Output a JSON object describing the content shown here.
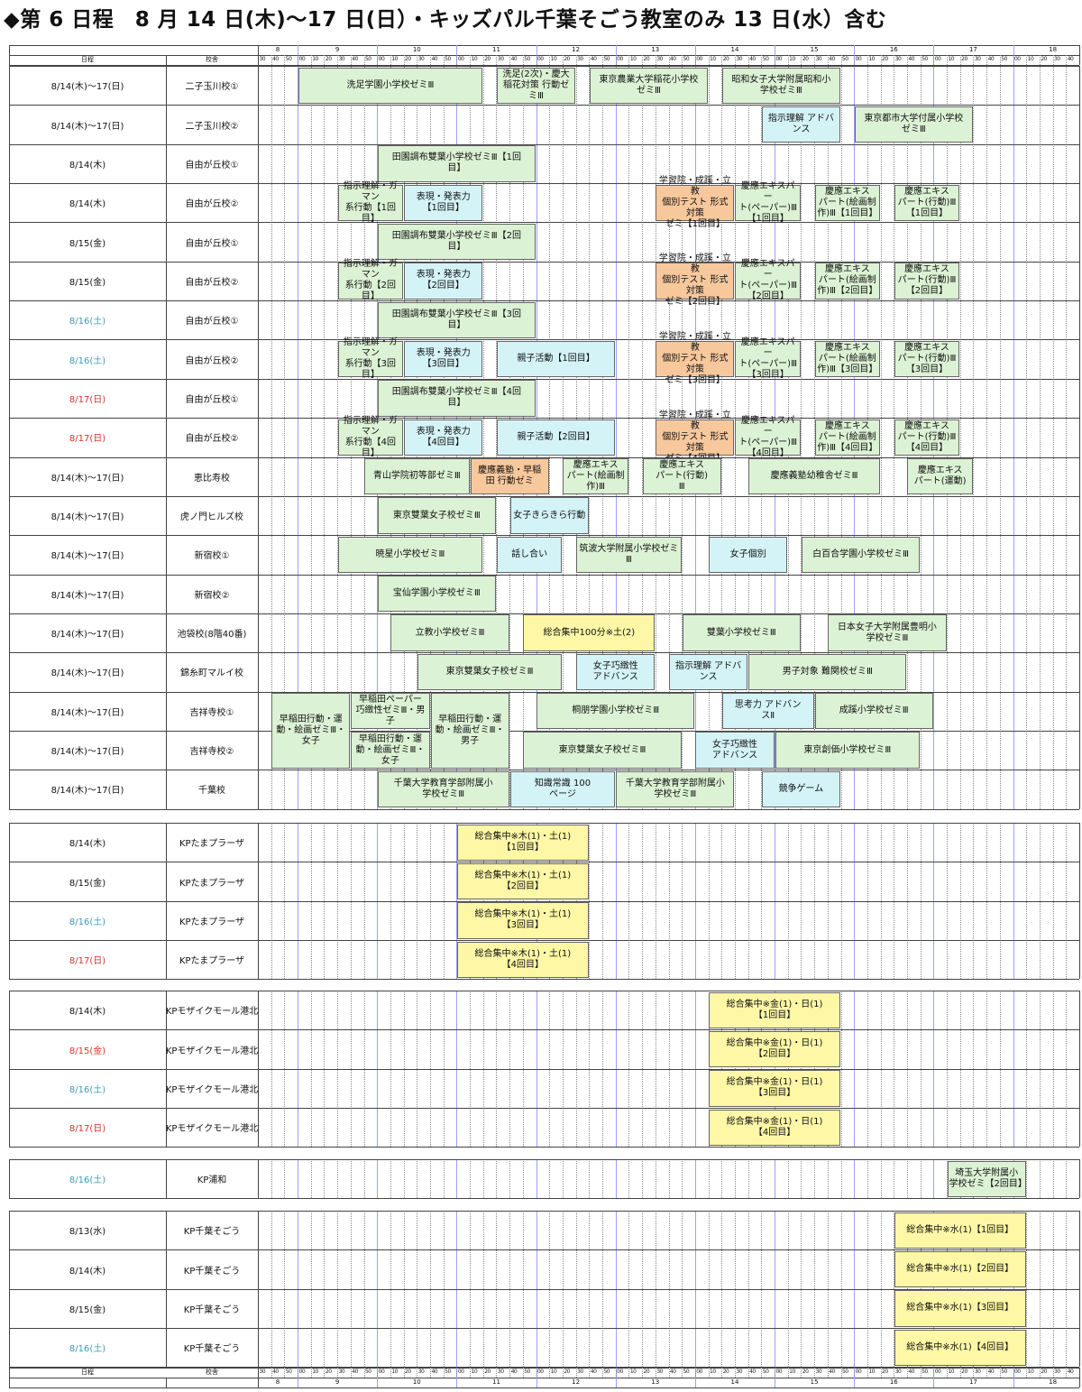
{
  "title": "◆第 6 日程　8 月 14 日(木)～17 日(日）・キッズパル千葉そごう教室のみ 13 日(水）含む",
  "header": {
    "date_label": "日程",
    "school_label": "校舎",
    "hours": [
      "8",
      "9",
      "10",
      "11",
      "12",
      "13",
      "14",
      "15",
      "16",
      "17",
      "18"
    ],
    "first_hour_ticks": [
      "30",
      "40",
      "50"
    ],
    "hour_ticks": [
      "00",
      "10",
      "20",
      "30",
      "40",
      "50"
    ]
  },
  "colors": {
    "green": "#dcf2d4",
    "cyan": "#d4f3f7",
    "orange": "#f8c89d",
    "yellow": "#fdf7a6",
    "blue_date": "#3a9bb6",
    "red_date": "#e0302a"
  },
  "groups": [
    {
      "rows": [
        {
          "date": "8/14(木)～17(日)",
          "date_color": "",
          "school": "二子玉川校①",
          "blocks": [
            {
              "start": "9:00",
              "end": "11:20",
              "label": "洗足学園小学校ゼミⅢ",
              "color": "green"
            },
            {
              "start": "11:30",
              "end": "12:30",
              "label": "洗足(2次)・慶大\n稲花対策 行動ゼ\nミⅢ",
              "color": "green"
            },
            {
              "start": "12:40",
              "end": "14:10",
              "label": "東京農業大学稲花小学校\nゼミⅢ",
              "color": "green"
            },
            {
              "start": "14:20",
              "end": "15:50",
              "label": "昭和女子大学附属昭和小\n学校ゼミⅢ",
              "color": "green"
            }
          ]
        },
        {
          "date": "8/14(木)～17(日)",
          "date_color": "",
          "school": "二子玉川校②",
          "blocks": [
            {
              "start": "14:50",
              "end": "15:50",
              "label": "指示理解 アドバ\nンス",
              "color": "cyan"
            },
            {
              "start": "16:00",
              "end": "17:30",
              "label": "東京都市大学付属小学校\nゼミⅢ",
              "color": "green"
            }
          ]
        },
        {
          "date": "8/14(木)",
          "date_color": "",
          "school": "自由が丘校①",
          "blocks": [
            {
              "start": "10:00",
              "end": "12:00",
              "label": "田園調布雙葉小学校ゼミⅢ【1回\n目】",
              "color": "green"
            }
          ]
        },
        {
          "date": "8/14(木)",
          "date_color": "",
          "school": "自由が丘校②",
          "blocks": [
            {
              "start": "9:30",
              "end": "10:20",
              "label": "指示理解・ガマン\n系行動【1回目】",
              "color": "green"
            },
            {
              "start": "10:20",
              "end": "11:20",
              "label": "表現・発表力\n【1回目】",
              "color": "cyan"
            },
            {
              "start": "13:30",
              "end": "14:30",
              "label": "学習院・成蹊・立教\n個別テスト 形式対策\nゼミ【1回目】",
              "color": "orange"
            },
            {
              "start": "14:30",
              "end": "15:20",
              "label": "慶應エキスパー\nト(ペーパー)Ⅲ\n【1回目】",
              "color": "green"
            },
            {
              "start": "15:30",
              "end": "16:20",
              "label": "慶應エキス\nパート(絵画制\n作)Ⅲ【1回目】",
              "color": "green"
            },
            {
              "start": "16:30",
              "end": "17:20",
              "label": "慶應エキス\nパート(行動)Ⅲ\n【1回目】",
              "color": "green"
            }
          ]
        },
        {
          "date": "8/15(金)",
          "date_color": "",
          "school": "自由が丘校①",
          "blocks": [
            {
              "start": "10:00",
              "end": "12:00",
              "label": "田園調布雙葉小学校ゼミⅢ【2回\n目】",
              "color": "green"
            }
          ]
        },
        {
          "date": "8/15(金)",
          "date_color": "",
          "school": "自由が丘校②",
          "blocks": [
            {
              "start": "9:30",
              "end": "10:20",
              "label": "指示理解・ガマン\n系行動【2回目】",
              "color": "green"
            },
            {
              "start": "10:20",
              "end": "11:20",
              "label": "表現・発表力\n【2回目】",
              "color": "cyan"
            },
            {
              "start": "13:30",
              "end": "14:30",
              "label": "学習院・成蹊・立教\n個別テスト 形式対策\nゼミ【2回目】",
              "color": "orange"
            },
            {
              "start": "14:30",
              "end": "15:20",
              "label": "慶應エキスパー\nト(ペーパー)Ⅲ\n【2回目】",
              "color": "green"
            },
            {
              "start": "15:30",
              "end": "16:20",
              "label": "慶應エキス\nパート(絵画制\n作)Ⅲ【2回目】",
              "color": "green"
            },
            {
              "start": "16:30",
              "end": "17:20",
              "label": "慶應エキス\nパート(行動)Ⅲ\n【2回目】",
              "color": "green"
            }
          ]
        },
        {
          "date": "8/16(土)",
          "date_color": "blue",
          "school": "自由が丘校①",
          "blocks": [
            {
              "start": "10:00",
              "end": "12:00",
              "label": "田園調布雙葉小学校ゼミⅢ【3回\n目】",
              "color": "green"
            }
          ]
        },
        {
          "date": "8/16(土)",
          "date_color": "blue",
          "school": "自由が丘校②",
          "blocks": [
            {
              "start": "9:30",
              "end": "10:20",
              "label": "指示理解・ガマン\n系行動【3回目】",
              "color": "green"
            },
            {
              "start": "10:20",
              "end": "11:20",
              "label": "表現・発表力\n【3回目】",
              "color": "cyan"
            },
            {
              "start": "11:30",
              "end": "13:00",
              "label": "親子活動【1回目】",
              "color": "cyan"
            },
            {
              "start": "13:30",
              "end": "14:30",
              "label": "学習院・成蹊・立教\n個別テスト 形式対策\nゼミ【3回目】",
              "color": "orange"
            },
            {
              "start": "14:30",
              "end": "15:20",
              "label": "慶應エキスパー\nト(ペーパー)Ⅲ\n【3回目】",
              "color": "green"
            },
            {
              "start": "15:30",
              "end": "16:20",
              "label": "慶應エキス\nパート(絵画制\n作)Ⅲ【3回目】",
              "color": "green"
            },
            {
              "start": "16:30",
              "end": "17:20",
              "label": "慶應エキス\nパート(行動)Ⅲ\n【3回目】",
              "color": "green"
            }
          ]
        },
        {
          "date": "8/17(日)",
          "date_color": "red",
          "school": "自由が丘校①",
          "blocks": [
            {
              "start": "10:00",
              "end": "12:00",
              "label": "田園調布雙葉小学校ゼミⅢ【4回\n目】",
              "color": "green"
            }
          ]
        },
        {
          "date": "8/17(日)",
          "date_color": "red",
          "school": "自由が丘校②",
          "blocks": [
            {
              "start": "9:30",
              "end": "10:20",
              "label": "指示理解・ガマン\n系行動【4回目】",
              "color": "green"
            },
            {
              "start": "10:20",
              "end": "11:20",
              "label": "表現・発表力\n【4回目】",
              "color": "cyan"
            },
            {
              "start": "11:30",
              "end": "13:00",
              "label": "親子活動【2回目】",
              "color": "cyan"
            },
            {
              "start": "13:30",
              "end": "14:30",
              "label": "学習院・成蹊・立教\n個別テスト 形式対策\nゼミ【4回目】",
              "color": "orange"
            },
            {
              "start": "14:30",
              "end": "15:20",
              "label": "慶應エキスパー\nト(ペーパー)Ⅲ\n【4回目】",
              "color": "green"
            },
            {
              "start": "15:30",
              "end": "16:20",
              "label": "慶應エキス\nパート(絵画制\n作)Ⅲ【4回目】",
              "color": "green"
            },
            {
              "start": "16:30",
              "end": "17:20",
              "label": "慶應エキス\nパート(行動)Ⅲ\n【4回目】",
              "color": "green"
            }
          ]
        },
        {
          "date": "8/14(木)～17(日)",
          "date_color": "",
          "school": "恵比寿校",
          "blocks": [
            {
              "start": "9:50",
              "end": "11:10",
              "label": "青山学院初等部ゼミⅢ",
              "color": "green"
            },
            {
              "start": "11:10",
              "end": "12:10",
              "label": "慶應義塾・早稲\n田 行動ゼミ",
              "color": "orange"
            },
            {
              "start": "12:20",
              "end": "13:10",
              "label": "慶應エキス\nパート(絵画制\n作)Ⅲ",
              "color": "green"
            },
            {
              "start": "13:20",
              "end": "14:20",
              "label": "慶應エキス\nパート(行動)\nⅢ",
              "color": "green"
            },
            {
              "start": "14:40",
              "end": "16:20",
              "label": "慶應義塾幼稚舎ゼミⅢ",
              "color": "green"
            },
            {
              "start": "16:40",
              "end": "17:30",
              "label": "慶應エキス\nパート(運動)",
              "color": "green"
            }
          ]
        },
        {
          "date": "8/14(木)～17(日)",
          "date_color": "",
          "school": "虎ノ門ヒルズ校",
          "blocks": [
            {
              "start": "10:00",
              "end": "11:30",
              "label": "東京雙葉女子校ゼミⅢ",
              "color": "green"
            },
            {
              "start": "11:40",
              "end": "12:40",
              "label": "女子きらきら行動",
              "color": "cyan"
            }
          ]
        },
        {
          "date": "8/14(木)～17(日)",
          "date_color": "",
          "school": "新宿校①",
          "blocks": [
            {
              "start": "9:30",
              "end": "11:20",
              "label": "暁星小学校ゼミⅢ",
              "color": "green"
            },
            {
              "start": "11:30",
              "end": "12:20",
              "label": "話し合い",
              "color": "cyan"
            },
            {
              "start": "12:30",
              "end": "13:50",
              "label": "筑波大学附属小学校ゼミ\nⅢ",
              "color": "green"
            },
            {
              "start": "14:10",
              "end": "15:10",
              "label": "女子個別",
              "color": "cyan"
            },
            {
              "start": "15:20",
              "end": "16:50",
              "label": "白百合学園小学校ゼミⅢ",
              "color": "green"
            }
          ]
        },
        {
          "date": "8/14(木)～17(日)",
          "date_color": "",
          "school": "新宿校②",
          "blocks": [
            {
              "start": "10:00",
              "end": "11:30",
              "label": "宝仙学園小学校ゼミⅢ",
              "color": "green"
            }
          ]
        },
        {
          "date": "8/14(木)～17(日)",
          "date_color": "",
          "school": "池袋校(8階40番)",
          "blocks": [
            {
              "start": "10:10",
              "end": "11:40",
              "label": "立教小学校ゼミⅢ",
              "color": "green"
            },
            {
              "start": "11:50",
              "end": "13:30",
              "label": "総合集中100分※土(2)",
              "color": "yellow"
            },
            {
              "start": "13:50",
              "end": "15:20",
              "label": "雙葉小学校ゼミⅢ",
              "color": "green"
            },
            {
              "start": "15:40",
              "end": "17:10",
              "label": "日本女子大学附属豊明小\n学校ゼミⅢ",
              "color": "green"
            }
          ]
        },
        {
          "date": "8/14(木)～17(日)",
          "date_color": "",
          "school": "錦糸町マルイ校",
          "blocks": [
            {
              "start": "10:30",
              "end": "12:20",
              "label": "東京雙葉女子校ゼミⅢ",
              "color": "green"
            },
            {
              "start": "12:30",
              "end": "13:30",
              "label": "女子巧緻性\nアドバンス",
              "color": "cyan"
            },
            {
              "start": "13:40",
              "end": "14:40",
              "label": "指示理解 アドバ\nンス",
              "color": "cyan"
            },
            {
              "start": "14:40",
              "end": "16:40",
              "label": "男子対象 難関校ゼミⅢ",
              "color": "green"
            }
          ]
        },
        {
          "date": "8/14(木)～17(日)",
          "date_color": "",
          "school": "吉祥寺校①",
          "blocks": [
            {
              "start": "8:40",
              "end": "9:40",
              "label": "早稲田行動・運\n動・絵画ゼミⅢ・\n女子",
              "color": "green",
              "span": 2
            },
            {
              "start": "9:40",
              "end": "10:40",
              "label": "早稲田ペーパー\n巧緻性ゼミⅢ・男\n子",
              "color": "green"
            },
            {
              "start": "10:40",
              "end": "11:40",
              "label": "早稲田行動・運\n動・絵画ゼミⅢ・\n男子",
              "color": "green",
              "span": 2
            },
            {
              "start": "12:00",
              "end": "14:00",
              "label": "桐朋学園小学校ゼミⅢ",
              "color": "green"
            },
            {
              "start": "14:20",
              "end": "15:30",
              "label": "思考力 アドバン\nスⅡ",
              "color": "cyan"
            },
            {
              "start": "15:30",
              "end": "17:00",
              "label": "成蹊小学校ゼミⅢ",
              "color": "green"
            }
          ]
        },
        {
          "date": "8/14(木)～17(日)",
          "date_color": "",
          "school": "吉祥寺校②",
          "blocks": [
            {
              "start": "9:40",
              "end": "10:40",
              "label": "早稲田行動・運\n動・絵画ゼミⅢ・\n女子",
              "color": "green"
            },
            {
              "start": "11:50",
              "end": "13:50",
              "label": "東京雙葉女子校ゼミⅢ",
              "color": "green"
            },
            {
              "start": "14:00",
              "end": "15:00",
              "label": "女子巧緻性\nアドバンス",
              "color": "cyan"
            },
            {
              "start": "15:00",
              "end": "16:50",
              "label": "東京創価小学校ゼミⅢ",
              "color": "green"
            }
          ]
        },
        {
          "date": "8/14(木)～17(日)",
          "date_color": "",
          "school": "千葉校",
          "blocks": [
            {
              "start": "10:00",
              "end": "11:40",
              "label": "千葉大学教育学部附属小\n学校ゼミⅢ",
              "color": "green"
            },
            {
              "start": "11:40",
              "end": "13:00",
              "label": "知識常識 100\nページ",
              "color": "cyan"
            },
            {
              "start": "13:00",
              "end": "14:30",
              "label": "千葉大学教育学部附属小\n学校ゼミⅢ",
              "color": "green"
            },
            {
              "start": "14:50",
              "end": "15:50",
              "label": "競争ゲーム",
              "color": "cyan"
            }
          ]
        }
      ]
    },
    {
      "rows": [
        {
          "date": "8/14(木)",
          "date_color": "",
          "school": "KPたまプラーザ",
          "blocks": [
            {
              "start": "11:00",
              "end": "12:40",
              "label": "総合集中※木(1)・土(1)\n【1回目】",
              "color": "yellow"
            }
          ]
        },
        {
          "date": "8/15(金)",
          "date_color": "",
          "school": "KPたまプラーザ",
          "blocks": [
            {
              "start": "11:00",
              "end": "12:40",
              "label": "総合集中※木(1)・土(1)\n【2回目】",
              "color": "yellow"
            }
          ]
        },
        {
          "date": "8/16(土)",
          "date_color": "blue",
          "school": "KPたまプラーザ",
          "blocks": [
            {
              "start": "11:00",
              "end": "12:40",
              "label": "総合集中※木(1)・土(1)\n【3回目】",
              "color": "yellow"
            }
          ]
        },
        {
          "date": "8/17(日)",
          "date_color": "red",
          "school": "KPたまプラーザ",
          "blocks": [
            {
              "start": "11:00",
              "end": "12:40",
              "label": "総合集中※木(1)・土(1)\n【4回目】",
              "color": "yellow"
            }
          ]
        }
      ]
    },
    {
      "rows": [
        {
          "date": "8/14(木)",
          "date_color": "",
          "school": "KPモザイクモール港北",
          "blocks": [
            {
              "start": "14:10",
              "end": "15:50",
              "label": "総合集中※金(1)・日(1)\n【1回目】",
              "color": "yellow"
            }
          ]
        },
        {
          "date": "8/15(金)",
          "date_color": "red",
          "school": "KPモザイクモール港北",
          "blocks": [
            {
              "start": "14:10",
              "end": "15:50",
              "label": "総合集中※金(1)・日(1)\n【2回目】",
              "color": "yellow"
            }
          ]
        },
        {
          "date": "8/16(土)",
          "date_color": "blue",
          "school": "KPモザイクモール港北",
          "blocks": [
            {
              "start": "14:10",
              "end": "15:50",
              "label": "総合集中※金(1)・日(1)\n【3回目】",
              "color": "yellow"
            }
          ]
        },
        {
          "date": "8/17(日)",
          "date_color": "red",
          "school": "KPモザイクモール港北",
          "blocks": [
            {
              "start": "14:10",
              "end": "15:50",
              "label": "総合集中※金(1)・日(1)\n【4回目】",
              "color": "yellow"
            }
          ]
        }
      ]
    },
    {
      "rows": [
        {
          "date": "8/16(土)",
          "date_color": "blue",
          "school": "KP浦和",
          "blocks": [
            {
              "start": "17:10",
              "end": "18:10",
              "label": "埼玉大学附属小\n学校ゼミ【2回目】",
              "color": "green"
            }
          ]
        }
      ]
    },
    {
      "rows": [
        {
          "date": "8/13(水)",
          "date_color": "",
          "school": "KP千葉そごう",
          "blocks": [
            {
              "start": "16:30",
              "end": "18:10",
              "label": "総合集中※水(1)【1回目】",
              "color": "yellow"
            }
          ]
        },
        {
          "date": "8/14(木)",
          "date_color": "",
          "school": "KP千葉そごう",
          "blocks": [
            {
              "start": "16:30",
              "end": "18:10",
              "label": "総合集中※水(1)【2回目】",
              "color": "yellow"
            }
          ]
        },
        {
          "date": "8/15(金)",
          "date_color": "",
          "school": "KP千葉そごう",
          "blocks": [
            {
              "start": "16:30",
              "end": "18:10",
              "label": "総合集中※水(1)【3回目】",
              "color": "yellow"
            }
          ]
        },
        {
          "date": "8/16(土)",
          "date_color": "blue",
          "school": "KP千葉そごう",
          "blocks": [
            {
              "start": "16:30",
              "end": "18:10",
              "label": "総合集中※水(1)【4回目】",
              "color": "yellow"
            }
          ]
        }
      ]
    }
  ]
}
